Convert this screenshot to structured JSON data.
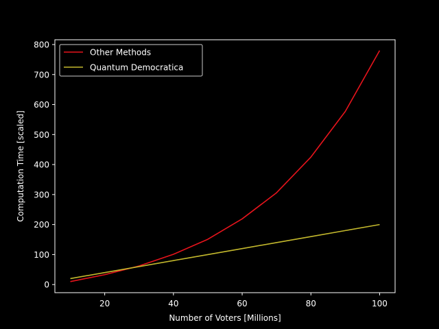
{
  "chart_data": {
    "type": "line",
    "title": "",
    "xlabel": "Number of Voters [Millions]",
    "ylabel": "Computation Time [scaled]",
    "xlim": [
      5.5,
      104.5
    ],
    "ylim": [
      -27,
      816
    ],
    "xticks": [
      20,
      40,
      60,
      80,
      100
    ],
    "yticks": [
      0,
      100,
      200,
      300,
      400,
      500,
      600,
      700,
      800
    ],
    "grid": false,
    "legend_position": "top-left",
    "background": "#000000",
    "foreground": "#ffffff",
    "x": [
      10,
      20,
      30,
      40,
      50,
      60,
      70,
      80,
      90,
      100
    ],
    "series": [
      {
        "name": "Other Methods",
        "color": "#e8141c",
        "values": [
          10,
          33,
          62,
          101,
          151,
          219,
          306,
          425,
          577,
          780
        ]
      },
      {
        "name": "Quantum Democratica",
        "color": "#c4b92d",
        "values": [
          20,
          40,
          60,
          80,
          100,
          120,
          140,
          160,
          180,
          200
        ]
      }
    ]
  }
}
